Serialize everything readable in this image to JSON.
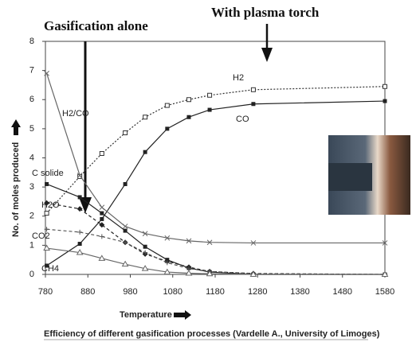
{
  "chart_data": {
    "type": "line",
    "title": "Efficiency of different gasification processes (Vardelle A., University of Limoges)",
    "x_label": "Temperature",
    "y_label": "No. of moles produced",
    "annotations": [
      "Gasification alone",
      "With plasma torch"
    ],
    "x": [
      783,
      861,
      913,
      968,
      1015,
      1067,
      1118,
      1167,
      1270,
      1580
    ],
    "series": [
      {
        "name": "H2",
        "color": "#333333",
        "marker": "open-square",
        "dash": "dotted",
        "values": [
          2.1,
          3.36,
          4.15,
          4.86,
          5.4,
          5.8,
          6.0,
          6.15,
          6.34,
          6.45
        ]
      },
      {
        "name": "CO",
        "color": "#222222",
        "marker": "square",
        "dash": "solid",
        "values": [
          0.3,
          1.05,
          1.9,
          3.1,
          4.2,
          5.0,
          5.4,
          5.65,
          5.85,
          5.95
        ]
      },
      {
        "name": "H2/CO",
        "color": "#666666",
        "marker": "cross",
        "dash": "solid",
        "values": [
          6.9,
          3.4,
          2.3,
          1.65,
          1.4,
          1.25,
          1.15,
          1.1,
          1.08,
          1.08
        ]
      },
      {
        "name": "C solide",
        "color": "#222222",
        "marker": "square",
        "dash": "solid",
        "values": [
          3.1,
          2.65,
          2.1,
          1.5,
          0.95,
          0.5,
          0.22,
          0.08,
          0,
          0
        ]
      },
      {
        "name": "H2O",
        "color": "#222222",
        "marker": "diamond",
        "dash": "dashed",
        "values": [
          2.45,
          2.25,
          1.7,
          1.1,
          0.7,
          0.45,
          0.25,
          0.1,
          0.03,
          0
        ]
      },
      {
        "name": "CO2",
        "color": "#555555",
        "marker": "plus",
        "dash": "dashed",
        "values": [
          1.55,
          1.45,
          1.3,
          1.1,
          0.75,
          0.4,
          0.2,
          0.1,
          0.02,
          0
        ]
      },
      {
        "name": "CH4",
        "color": "#666666",
        "marker": "triangle",
        "dash": "solid",
        "values": [
          0.9,
          0.75,
          0.55,
          0.35,
          0.2,
          0.08,
          0.04,
          0.02,
          0,
          0
        ]
      }
    ],
    "xlim": [
      780,
      1580
    ],
    "xticks": [
      780,
      880,
      980,
      1080,
      1180,
      1280,
      1380,
      1480,
      1580
    ],
    "ylim": [
      0,
      8
    ],
    "yticks": [
      0,
      1,
      2,
      3,
      4,
      5,
      6,
      7,
      8
    ],
    "grid": false
  }
}
